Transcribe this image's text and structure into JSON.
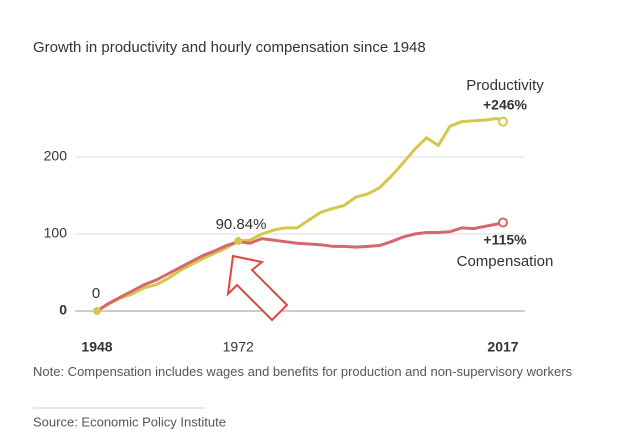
{
  "chart_data": {
    "type": "line",
    "title": "Growth in productivity and hourly compensation since 1948",
    "x": [
      1948,
      1950,
      1952,
      1954,
      1956,
      1958,
      1960,
      1962,
      1964,
      1966,
      1968,
      1970,
      1972,
      1974,
      1976,
      1978,
      1980,
      1982,
      1984,
      1986,
      1988,
      1990,
      1992,
      1994,
      1996,
      1998,
      2000,
      2002,
      2004,
      2006,
      2008,
      2010,
      2012,
      2014,
      2016,
      2017
    ],
    "series": [
      {
        "name": "Productivity",
        "color": "#d6c64c",
        "values": [
          0,
          9,
          17,
          22,
          30,
          34,
          42,
          52,
          60,
          68,
          75,
          82,
          90.84,
          92,
          100,
          105,
          108,
          108,
          118,
          128,
          133,
          137,
          148,
          152,
          160,
          175,
          192,
          210,
          225,
          215,
          240,
          246,
          247,
          248,
          250,
          246
        ]
      },
      {
        "name": "Compensation",
        "color": "#d4686b",
        "values": [
          0,
          10,
          18,
          26,
          34,
          40,
          48,
          56,
          64,
          72,
          78,
          85,
          90,
          88,
          94,
          92,
          90,
          88,
          87,
          86,
          84,
          84,
          83,
          84,
          85,
          90,
          96,
          100,
          102,
          102,
          103,
          108,
          107,
          110,
          113,
          115
        ]
      }
    ],
    "annotations": [
      "+246%",
      "+115%",
      "90.84%",
      "0"
    ],
    "xlim": [
      1948,
      2017
    ],
    "xticks": [
      1948,
      1972,
      2017
    ],
    "ylim": [
      0,
      250
    ],
    "yticks": [
      0,
      100,
      200
    ],
    "grid": true,
    "note": "Note: Compensation includes wages and benefits for production and non-supervisory workers",
    "source": "Source: Economic Policy Institute"
  }
}
